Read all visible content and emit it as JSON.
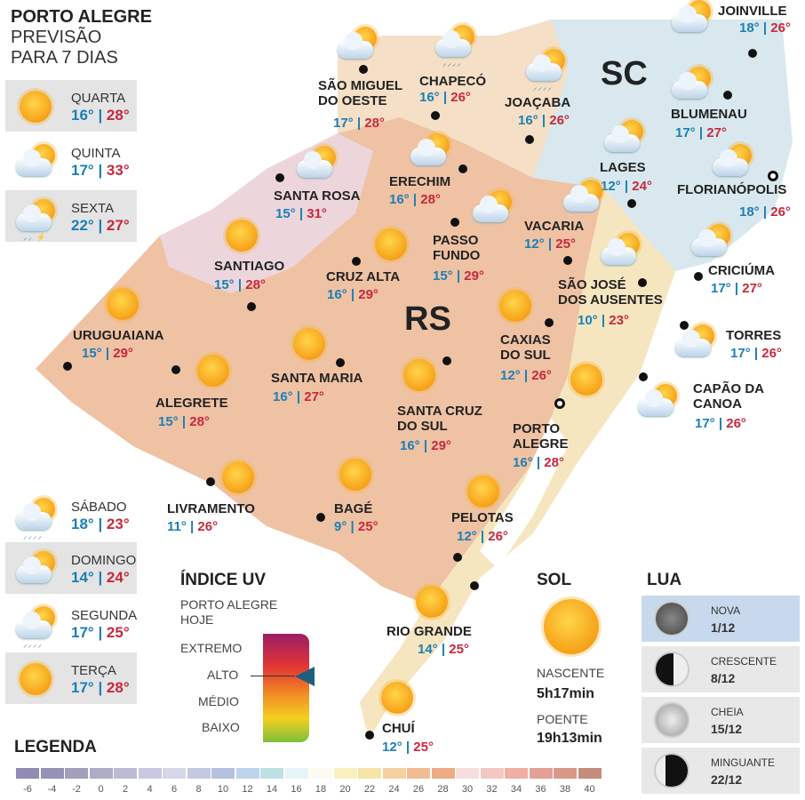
{
  "header": {
    "line1": "PORTO ALEGRE",
    "line2": "PREVISÃO",
    "line3": "PARA 7 DIAS"
  },
  "forecast": [
    {
      "day": "QUARTA",
      "min": "16°",
      "max": "28°",
      "icon": "sun"
    },
    {
      "day": "QUINTA",
      "min": "17°",
      "max": "33°",
      "icon": "cloud-sun"
    },
    {
      "day": "SEXTA",
      "min": "22°",
      "max": "27°",
      "icon": "storm"
    },
    {
      "day": "SÁBADO",
      "min": "18°",
      "max": "23°",
      "icon": "rain-sun"
    },
    {
      "day": "DOMINGO",
      "min": "14°",
      "max": "24°",
      "icon": "cloud-sun"
    },
    {
      "day": "SEGUNDA",
      "min": "17°",
      "max": "25°",
      "icon": "rain-sun"
    },
    {
      "day": "TERÇA",
      "min": "17°",
      "max": "28°",
      "icon": "sun"
    }
  ],
  "states": {
    "rs": "RS",
    "sc": "SC"
  },
  "cities": [
    {
      "name": "SÃO MIGUEL\nDO OESTE",
      "min": "17°",
      "max": "28°",
      "icon": "cloud-sun"
    },
    {
      "name": "CHAPECÓ",
      "min": "16°",
      "max": "26°",
      "icon": "rain-sun"
    },
    {
      "name": "JOAÇABA",
      "min": "16°",
      "max": "26°",
      "icon": "rain-sun"
    },
    {
      "name": "JOINVILLE",
      "min": "18°",
      "max": "26°",
      "icon": "cloud-sun"
    },
    {
      "name": "BLUMENAU",
      "min": "17°",
      "max": "27°",
      "icon": "cloud-sun"
    },
    {
      "name": "LAGES",
      "min": "12°",
      "max": "24°",
      "icon": "cloud-sun"
    },
    {
      "name": "FLORIANÓPOLIS",
      "min": "18°",
      "max": "26°",
      "icon": "cloud-sun"
    },
    {
      "name": "SANTA ROSA",
      "min": "15°",
      "max": "31°",
      "icon": "cloud-sun"
    },
    {
      "name": "ERECHIM",
      "min": "16°",
      "max": "28°",
      "icon": "cloud-sun"
    },
    {
      "name": "PASSO\nFUNDO",
      "min": "15°",
      "max": "29°",
      "icon": "cloud-sun"
    },
    {
      "name": "VACARIA",
      "min": "12°",
      "max": "25°",
      "icon": "cloud-sun"
    },
    {
      "name": "SANTIAGO",
      "min": "15°",
      "max": "28°",
      "icon": "sun"
    },
    {
      "name": "CRUZ ALTA",
      "min": "16°",
      "max": "29°",
      "icon": "sun"
    },
    {
      "name": "SÃO JOSÉ\nDOS AUSENTES",
      "min": "10°",
      "max": "23°",
      "icon": "cloud-sun"
    },
    {
      "name": "CRICIÚMA",
      "min": "17°",
      "max": "27°",
      "icon": "cloud-sun"
    },
    {
      "name": "URUGUAIANA",
      "min": "15°",
      "max": "29°",
      "icon": "sun"
    },
    {
      "name": "CAXIAS\nDO SUL",
      "min": "12°",
      "max": "26°",
      "icon": "sun"
    },
    {
      "name": "TORRES",
      "min": "17°",
      "max": "26°",
      "icon": "cloud-sun"
    },
    {
      "name": "SANTA MARIA",
      "min": "16°",
      "max": "27°",
      "icon": "sun"
    },
    {
      "name": "ALEGRETE",
      "min": "15°",
      "max": "28°",
      "icon": "sun"
    },
    {
      "name": "SANTA CRUZ\nDO SUL",
      "min": "16°",
      "max": "29°",
      "icon": "sun"
    },
    {
      "name": "CAPÃO DA\nCANOA",
      "min": "17°",
      "max": "26°",
      "icon": "cloud-sun"
    },
    {
      "name": "PORTO\nALEGRE",
      "min": "16°",
      "max": "28°",
      "icon": "sun"
    },
    {
      "name": "LIVRAMENTO",
      "min": "11°",
      "max": "26°",
      "icon": "sun"
    },
    {
      "name": "BAGÉ",
      "min": "9°",
      "max": "25°",
      "icon": "sun"
    },
    {
      "name": "PELOTAS",
      "min": "12°",
      "max": "26°",
      "icon": "sun"
    },
    {
      "name": "RIO GRANDE",
      "min": "14°",
      "max": "25°",
      "icon": "sun"
    },
    {
      "name": "CHUÍ",
      "min": "12°",
      "max": "25°",
      "icon": "sun"
    }
  ],
  "uv": {
    "title": "ÍNDICE UV",
    "subtitle1": "PORTO ALEGRE",
    "subtitle2": "HOJE",
    "levels": [
      "EXTREMO",
      "ALTO",
      "MÉDIO",
      "BAIXO"
    ],
    "current": "ALTO"
  },
  "sun": {
    "title": "SOL",
    "rise_label": "NASCENTE",
    "rise": "5h17min",
    "set_label": "POENTE",
    "set": "19h13min"
  },
  "moon": {
    "title": "LUA",
    "phases": [
      {
        "label": "NOVA",
        "date": "1/12"
      },
      {
        "label": "CRESCENTE",
        "date": "8/12"
      },
      {
        "label": "CHEIA",
        "date": "15/12"
      },
      {
        "label": "MINGUANTE",
        "date": "22/12"
      }
    ]
  },
  "legend": {
    "title": "LEGENDA",
    "values": [
      "-6",
      "-4",
      "-2",
      "0",
      "2",
      "4",
      "6",
      "8",
      "10",
      "12",
      "14",
      "16",
      "18",
      "20",
      "22",
      "24",
      "26",
      "28",
      "30",
      "32",
      "34",
      "36",
      "38",
      "40"
    ],
    "colors": [
      "#8f8bb3",
      "#9592b8",
      "#a19fba",
      "#aeadc6",
      "#bcbbd6",
      "#c9c8e2",
      "#d6d6ea",
      "#c4c8e2",
      "#b6c0e0",
      "#bcd3ec",
      "#bfe0e2",
      "#e6f4f8",
      "#fbfbf2",
      "#f9f0c0",
      "#f8e3a8",
      "#f5cfa0",
      "#f2bb90",
      "#eeab86",
      "#f6dede",
      "#f4c8c2",
      "#f0aea4",
      "#e4a096",
      "#d89888",
      "#c48c7c"
    ]
  }
}
